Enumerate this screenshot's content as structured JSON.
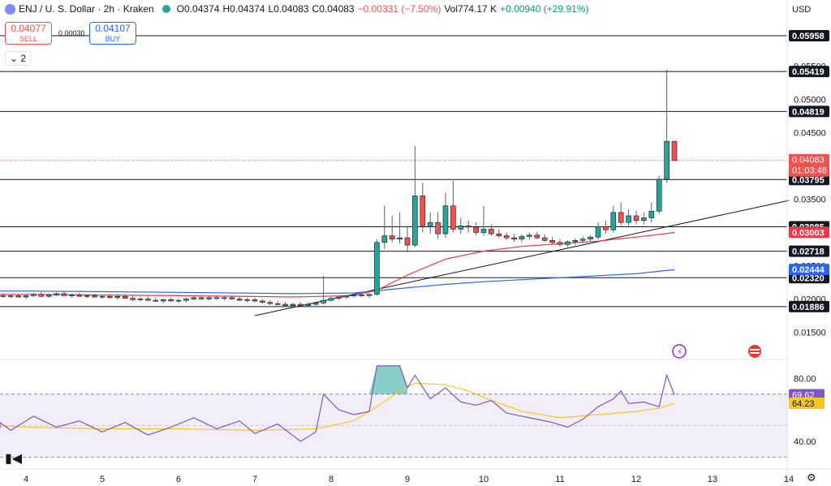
{
  "header": {
    "symbol": "ENJ / U. S. Dollar · 2h · Kraken",
    "open": "O0.04374",
    "high": "H0.04374",
    "low": "L0.04083",
    "close": "C0.04083",
    "change": "−0.00331 (−7.50%)",
    "volume": "Vol774.17 K",
    "volume_change": "+0.00940 (+29.91%)"
  },
  "trade": {
    "sell_price": "0.04077",
    "sell_label": "SELL",
    "spread": "0.00030",
    "buy_price": "0.04107",
    "buy_label": "BUY"
  },
  "collapse_count": "2",
  "currency": "USD",
  "colors": {
    "up": "#26a69a",
    "down": "#ef5350",
    "ma_fast": "#f23645",
    "ma_slow": "#2962ff",
    "rsi": "#7e57c2",
    "rsi_ma": "#f9c621"
  },
  "chart_data": [
    {
      "type": "candlestick",
      "x_ticks": [
        "4",
        "5",
        "6",
        "7",
        "8",
        "9",
        "10",
        "11",
        "12",
        "13",
        "14"
      ],
      "y_ticks": [
        0.015,
        0.02,
        0.025,
        0.03,
        0.035,
        0.04,
        0.045,
        0.05,
        0.055
      ],
      "y_tick_labels": [
        "0.01500",
        "0.02000",
        "0.02500",
        "0.03000",
        "0.03500",
        "0.04000",
        "0.04500",
        "0.05000",
        "0.05500"
      ],
      "ylim": [
        0.0125,
        0.0625
      ],
      "horizontal_levels": [
        0.05958,
        0.05419,
        0.04819,
        0.03795,
        0.03085,
        0.02718,
        0.0232,
        0.01886
      ],
      "level_labels": [
        "0.05958",
        "0.05419",
        "0.04819",
        "0.03795",
        "0.03085",
        "0.02718",
        "0.02320",
        "0.01886"
      ],
      "current_price": 0.04083,
      "current_price_label": "0.04083",
      "countdown": "01:03:48",
      "ma_fast_value": 0.03003,
      "ma_fast_label": "0.03003",
      "ma_slow_value": 0.02444,
      "ma_slow_label": "0.02444",
      "candles": [
        {
          "d": 3.7,
          "o": 0.0205,
          "h": 0.0209,
          "l": 0.0202,
          "c": 0.0204
        },
        {
          "d": 3.8,
          "o": 0.0204,
          "h": 0.0207,
          "l": 0.0201,
          "c": 0.0205
        },
        {
          "d": 3.9,
          "o": 0.0205,
          "h": 0.0208,
          "l": 0.0202,
          "c": 0.0203
        },
        {
          "d": 4.0,
          "o": 0.0203,
          "h": 0.0207,
          "l": 0.02,
          "c": 0.0205
        },
        {
          "d": 4.1,
          "o": 0.0205,
          "h": 0.0209,
          "l": 0.0203,
          "c": 0.0207
        },
        {
          "d": 4.2,
          "o": 0.0207,
          "h": 0.021,
          "l": 0.0203,
          "c": 0.0204
        },
        {
          "d": 4.3,
          "o": 0.0204,
          "h": 0.0208,
          "l": 0.0202,
          "c": 0.0206
        },
        {
          "d": 4.4,
          "o": 0.0206,
          "h": 0.021,
          "l": 0.0204,
          "c": 0.0208
        },
        {
          "d": 4.5,
          "o": 0.0208,
          "h": 0.0211,
          "l": 0.0204,
          "c": 0.0205
        },
        {
          "d": 4.6,
          "o": 0.0205,
          "h": 0.0208,
          "l": 0.0202,
          "c": 0.0206
        },
        {
          "d": 4.7,
          "o": 0.0206,
          "h": 0.0209,
          "l": 0.0203,
          "c": 0.0204
        },
        {
          "d": 4.8,
          "o": 0.0204,
          "h": 0.0207,
          "l": 0.0201,
          "c": 0.0205
        },
        {
          "d": 4.9,
          "o": 0.0205,
          "h": 0.0208,
          "l": 0.0202,
          "c": 0.0203
        },
        {
          "d": 5.0,
          "o": 0.0203,
          "h": 0.0206,
          "l": 0.02,
          "c": 0.0204
        },
        {
          "d": 5.1,
          "o": 0.0204,
          "h": 0.0207,
          "l": 0.0201,
          "c": 0.0202
        },
        {
          "d": 5.2,
          "o": 0.0202,
          "h": 0.0206,
          "l": 0.0199,
          "c": 0.0204
        },
        {
          "d": 5.3,
          "o": 0.0204,
          "h": 0.0207,
          "l": 0.02,
          "c": 0.0201
        },
        {
          "d": 5.4,
          "o": 0.0201,
          "h": 0.0205,
          "l": 0.0197,
          "c": 0.0199
        },
        {
          "d": 5.5,
          "o": 0.0199,
          "h": 0.0203,
          "l": 0.0196,
          "c": 0.02
        },
        {
          "d": 5.6,
          "o": 0.02,
          "h": 0.0204,
          "l": 0.0197,
          "c": 0.0198
        },
        {
          "d": 5.7,
          "o": 0.0198,
          "h": 0.0202,
          "l": 0.0195,
          "c": 0.0197
        },
        {
          "d": 5.8,
          "o": 0.0197,
          "h": 0.0201,
          "l": 0.0194,
          "c": 0.0199
        },
        {
          "d": 5.9,
          "o": 0.0199,
          "h": 0.0202,
          "l": 0.0196,
          "c": 0.0197
        },
        {
          "d": 6.0,
          "o": 0.0197,
          "h": 0.0201,
          "l": 0.0194,
          "c": 0.0198
        },
        {
          "d": 6.1,
          "o": 0.0198,
          "h": 0.0202,
          "l": 0.0195,
          "c": 0.02
        },
        {
          "d": 6.2,
          "o": 0.02,
          "h": 0.0204,
          "l": 0.0198,
          "c": 0.0202
        },
        {
          "d": 6.3,
          "o": 0.0202,
          "h": 0.0205,
          "l": 0.0199,
          "c": 0.02
        },
        {
          "d": 6.4,
          "o": 0.02,
          "h": 0.0204,
          "l": 0.0198,
          "c": 0.0202
        },
        {
          "d": 6.5,
          "o": 0.0202,
          "h": 0.0205,
          "l": 0.0199,
          "c": 0.0201
        },
        {
          "d": 6.6,
          "o": 0.0201,
          "h": 0.0204,
          "l": 0.0198,
          "c": 0.0202
        },
        {
          "d": 6.7,
          "o": 0.0202,
          "h": 0.0205,
          "l": 0.0199,
          "c": 0.02
        },
        {
          "d": 6.8,
          "o": 0.02,
          "h": 0.0203,
          "l": 0.0197,
          "c": 0.0198
        },
        {
          "d": 6.9,
          "o": 0.0198,
          "h": 0.0202,
          "l": 0.0195,
          "c": 0.0199
        },
        {
          "d": 7.0,
          "o": 0.0199,
          "h": 0.0202,
          "l": 0.0195,
          "c": 0.0197
        },
        {
          "d": 7.1,
          "o": 0.0197,
          "h": 0.02,
          "l": 0.0193,
          "c": 0.0195
        },
        {
          "d": 7.2,
          "o": 0.0195,
          "h": 0.0198,
          "l": 0.0191,
          "c": 0.0193
        },
        {
          "d": 7.3,
          "o": 0.0193,
          "h": 0.0197,
          "l": 0.019,
          "c": 0.0192
        },
        {
          "d": 7.4,
          "o": 0.0192,
          "h": 0.0196,
          "l": 0.0189,
          "c": 0.019
        },
        {
          "d": 7.5,
          "o": 0.019,
          "h": 0.0194,
          "l": 0.0188,
          "c": 0.0192
        },
        {
          "d": 7.6,
          "o": 0.0192,
          "h": 0.0195,
          "l": 0.0189,
          "c": 0.019
        },
        {
          "d": 7.7,
          "o": 0.019,
          "h": 0.0194,
          "l": 0.0188,
          "c": 0.0192
        },
        {
          "d": 7.8,
          "o": 0.0192,
          "h": 0.0196,
          "l": 0.019,
          "c": 0.0194
        },
        {
          "d": 7.9,
          "o": 0.0194,
          "h": 0.0235,
          "l": 0.0192,
          "c": 0.0198
        },
        {
          "d": 8.0,
          "o": 0.0198,
          "h": 0.0203,
          "l": 0.0196,
          "c": 0.0201
        },
        {
          "d": 8.1,
          "o": 0.0201,
          "h": 0.0205,
          "l": 0.0198,
          "c": 0.0203
        },
        {
          "d": 8.2,
          "o": 0.0203,
          "h": 0.0206,
          "l": 0.02,
          "c": 0.0205
        },
        {
          "d": 8.3,
          "o": 0.0205,
          "h": 0.0208,
          "l": 0.0202,
          "c": 0.0206
        },
        {
          "d": 8.4,
          "o": 0.0206,
          "h": 0.0209,
          "l": 0.0203,
          "c": 0.0205
        },
        {
          "d": 8.5,
          "o": 0.0205,
          "h": 0.0208,
          "l": 0.0202,
          "c": 0.0207
        },
        {
          "d": 8.6,
          "o": 0.0207,
          "h": 0.029,
          "l": 0.0205,
          "c": 0.0285
        },
        {
          "d": 8.7,
          "o": 0.0285,
          "h": 0.034,
          "l": 0.0275,
          "c": 0.0295
        },
        {
          "d": 8.8,
          "o": 0.0295,
          "h": 0.0325,
          "l": 0.0285,
          "c": 0.029
        },
        {
          "d": 8.9,
          "o": 0.029,
          "h": 0.033,
          "l": 0.0283,
          "c": 0.0292
        },
        {
          "d": 9.0,
          "o": 0.0292,
          "h": 0.031,
          "l": 0.027,
          "c": 0.0281
        },
        {
          "d": 9.1,
          "o": 0.0281,
          "h": 0.043,
          "l": 0.0278,
          "c": 0.0355
        },
        {
          "d": 9.2,
          "o": 0.0355,
          "h": 0.0375,
          "l": 0.03,
          "c": 0.031
        },
        {
          "d": 9.3,
          "o": 0.031,
          "h": 0.033,
          "l": 0.0298,
          "c": 0.0315
        },
        {
          "d": 9.4,
          "o": 0.0315,
          "h": 0.033,
          "l": 0.029,
          "c": 0.0298
        },
        {
          "d": 9.5,
          "o": 0.0298,
          "h": 0.036,
          "l": 0.0292,
          "c": 0.034
        },
        {
          "d": 9.6,
          "o": 0.034,
          "h": 0.0378,
          "l": 0.03,
          "c": 0.0305
        },
        {
          "d": 9.7,
          "o": 0.0305,
          "h": 0.0322,
          "l": 0.0298,
          "c": 0.031
        },
        {
          "d": 9.8,
          "o": 0.031,
          "h": 0.0318,
          "l": 0.03,
          "c": 0.0308
        },
        {
          "d": 9.9,
          "o": 0.0308,
          "h": 0.0315,
          "l": 0.0296,
          "c": 0.03
        },
        {
          "d": 10.0,
          "o": 0.03,
          "h": 0.034,
          "l": 0.0295,
          "c": 0.0305
        },
        {
          "d": 10.1,
          "o": 0.0305,
          "h": 0.0312,
          "l": 0.0295,
          "c": 0.0298
        },
        {
          "d": 10.2,
          "o": 0.0298,
          "h": 0.0305,
          "l": 0.0292,
          "c": 0.0295
        },
        {
          "d": 10.3,
          "o": 0.0295,
          "h": 0.03,
          "l": 0.0288,
          "c": 0.0292
        },
        {
          "d": 10.4,
          "o": 0.0292,
          "h": 0.0298,
          "l": 0.0286,
          "c": 0.029
        },
        {
          "d": 10.5,
          "o": 0.029,
          "h": 0.0297,
          "l": 0.0285,
          "c": 0.0294
        },
        {
          "d": 10.6,
          "o": 0.0294,
          "h": 0.03,
          "l": 0.0289,
          "c": 0.0296
        },
        {
          "d": 10.7,
          "o": 0.0296,
          "h": 0.0301,
          "l": 0.029,
          "c": 0.0292
        },
        {
          "d": 10.8,
          "o": 0.0292,
          "h": 0.0297,
          "l": 0.0286,
          "c": 0.0288
        },
        {
          "d": 10.9,
          "o": 0.0288,
          "h": 0.0293,
          "l": 0.0282,
          "c": 0.0285
        },
        {
          "d": 11.0,
          "o": 0.0285,
          "h": 0.029,
          "l": 0.0279,
          "c": 0.0282
        },
        {
          "d": 11.1,
          "o": 0.0282,
          "h": 0.0288,
          "l": 0.0278,
          "c": 0.0286
        },
        {
          "d": 11.2,
          "o": 0.0286,
          "h": 0.0291,
          "l": 0.0281,
          "c": 0.0288
        },
        {
          "d": 11.3,
          "o": 0.0288,
          "h": 0.0294,
          "l": 0.0284,
          "c": 0.029
        },
        {
          "d": 11.4,
          "o": 0.029,
          "h": 0.0296,
          "l": 0.0286,
          "c": 0.0293
        },
        {
          "d": 11.5,
          "o": 0.0293,
          "h": 0.0315,
          "l": 0.0289,
          "c": 0.0309
        },
        {
          "d": 11.6,
          "o": 0.0309,
          "h": 0.0318,
          "l": 0.0298,
          "c": 0.0304
        },
        {
          "d": 11.7,
          "o": 0.0304,
          "h": 0.034,
          "l": 0.03,
          "c": 0.033
        },
        {
          "d": 11.8,
          "o": 0.033,
          "h": 0.0345,
          "l": 0.031,
          "c": 0.0315
        },
        {
          "d": 11.9,
          "o": 0.0315,
          "h": 0.0335,
          "l": 0.031,
          "c": 0.0325
        },
        {
          "d": 12.0,
          "o": 0.0325,
          "h": 0.0332,
          "l": 0.0312,
          "c": 0.0318
        },
        {
          "d": 12.1,
          "o": 0.0318,
          "h": 0.033,
          "l": 0.0312,
          "c": 0.0322
        },
        {
          "d": 12.2,
          "o": 0.0322,
          "h": 0.0345,
          "l": 0.0315,
          "c": 0.0332
        },
        {
          "d": 12.3,
          "o": 0.0332,
          "h": 0.0385,
          "l": 0.0328,
          "c": 0.038
        },
        {
          "d": 12.4,
          "o": 0.038,
          "h": 0.0545,
          "l": 0.0375,
          "c": 0.0437
        },
        {
          "d": 12.5,
          "o": 0.0437,
          "h": 0.0437,
          "l": 0.0408,
          "c": 0.0408
        }
      ],
      "ma_fast": [
        {
          "d": 0.0,
          "v": 0.0207
        },
        {
          "d": 4.0,
          "v": 0.0207
        },
        {
          "d": 6.0,
          "v": 0.0205
        },
        {
          "d": 7.5,
          "v": 0.0203
        },
        {
          "d": 8.3,
          "v": 0.0205
        },
        {
          "d": 8.6,
          "v": 0.0213
        },
        {
          "d": 9.0,
          "v": 0.0236
        },
        {
          "d": 9.5,
          "v": 0.026
        },
        {
          "d": 10.0,
          "v": 0.0272
        },
        {
          "d": 10.5,
          "v": 0.0279
        },
        {
          "d": 11.0,
          "v": 0.0283
        },
        {
          "d": 11.5,
          "v": 0.0287
        },
        {
          "d": 12.0,
          "v": 0.0293
        },
        {
          "d": 12.3,
          "v": 0.0297
        },
        {
          "d": 12.5,
          "v": 0.03
        }
      ],
      "ma_slow": [
        {
          "d": 0.0,
          "v": 0.0212
        },
        {
          "d": 4.0,
          "v": 0.0212
        },
        {
          "d": 6.0,
          "v": 0.021
        },
        {
          "d": 7.5,
          "v": 0.0208
        },
        {
          "d": 8.3,
          "v": 0.0209
        },
        {
          "d": 9.0,
          "v": 0.0217
        },
        {
          "d": 9.5,
          "v": 0.0222
        },
        {
          "d": 10.0,
          "v": 0.0226
        },
        {
          "d": 10.5,
          "v": 0.0229
        },
        {
          "d": 11.0,
          "v": 0.0232
        },
        {
          "d": 11.5,
          "v": 0.0235
        },
        {
          "d": 12.0,
          "v": 0.0238
        },
        {
          "d": 12.5,
          "v": 0.0244
        }
      ],
      "trendline": [
        {
          "d": 7.0,
          "v": 0.0175
        },
        {
          "d": 14.0,
          "v": 0.0348
        }
      ]
    },
    {
      "type": "line",
      "y_ticks": [
        40,
        80
      ],
      "y_tick_labels": [
        "40.00",
        "80.00"
      ],
      "ylim": [
        24,
        90
      ],
      "band": [
        30,
        70
      ],
      "midline": 50,
      "rsi_label": "69.62",
      "rsi_ma_label": "64.23",
      "rsi": [
        {
          "d": 3.0,
          "v": 48
        },
        {
          "d": 3.4,
          "v": 52
        },
        {
          "d": 3.8,
          "v": 47
        },
        {
          "d": 4.1,
          "v": 56
        },
        {
          "d": 4.4,
          "v": 49
        },
        {
          "d": 4.7,
          "v": 53
        },
        {
          "d": 5.0,
          "v": 46
        },
        {
          "d": 5.3,
          "v": 52
        },
        {
          "d": 5.6,
          "v": 44
        },
        {
          "d": 5.9,
          "v": 49
        },
        {
          "d": 6.2,
          "v": 55
        },
        {
          "d": 6.5,
          "v": 48
        },
        {
          "d": 6.8,
          "v": 53
        },
        {
          "d": 7.0,
          "v": 45
        },
        {
          "d": 7.3,
          "v": 51
        },
        {
          "d": 7.6,
          "v": 40
        },
        {
          "d": 7.8,
          "v": 46
        },
        {
          "d": 7.9,
          "v": 70
        },
        {
          "d": 8.1,
          "v": 60
        },
        {
          "d": 8.3,
          "v": 57
        },
        {
          "d": 8.5,
          "v": 59
        },
        {
          "d": 8.6,
          "v": 88
        },
        {
          "d": 8.9,
          "v": 88
        },
        {
          "d": 9.0,
          "v": 74
        },
        {
          "d": 9.1,
          "v": 82
        },
        {
          "d": 9.3,
          "v": 67
        },
        {
          "d": 9.5,
          "v": 74
        },
        {
          "d": 9.7,
          "v": 65
        },
        {
          "d": 9.9,
          "v": 63
        },
        {
          "d": 10.1,
          "v": 66
        },
        {
          "d": 10.3,
          "v": 58
        },
        {
          "d": 10.6,
          "v": 55
        },
        {
          "d": 10.9,
          "v": 52
        },
        {
          "d": 11.1,
          "v": 49
        },
        {
          "d": 11.3,
          "v": 54
        },
        {
          "d": 11.5,
          "v": 62
        },
        {
          "d": 11.7,
          "v": 67
        },
        {
          "d": 11.8,
          "v": 72
        },
        {
          "d": 11.9,
          "v": 64
        },
        {
          "d": 12.1,
          "v": 65
        },
        {
          "d": 12.3,
          "v": 62
        },
        {
          "d": 12.4,
          "v": 82
        },
        {
          "d": 12.5,
          "v": 69.6
        }
      ],
      "rsi_ma": [
        {
          "d": 3.0,
          "v": 50
        },
        {
          "d": 4.0,
          "v": 49
        },
        {
          "d": 5.0,
          "v": 48
        },
        {
          "d": 6.0,
          "v": 48
        },
        {
          "d": 7.0,
          "v": 47
        },
        {
          "d": 7.8,
          "v": 48
        },
        {
          "d": 8.3,
          "v": 53
        },
        {
          "d": 8.6,
          "v": 62
        },
        {
          "d": 8.9,
          "v": 72
        },
        {
          "d": 9.1,
          "v": 77
        },
        {
          "d": 9.5,
          "v": 76
        },
        {
          "d": 9.8,
          "v": 72
        },
        {
          "d": 10.1,
          "v": 66
        },
        {
          "d": 10.5,
          "v": 59
        },
        {
          "d": 11.0,
          "v": 55
        },
        {
          "d": 11.5,
          "v": 57
        },
        {
          "d": 12.0,
          "v": 59
        },
        {
          "d": 12.3,
          "v": 61
        },
        {
          "d": 12.5,
          "v": 64.2
        }
      ]
    }
  ]
}
